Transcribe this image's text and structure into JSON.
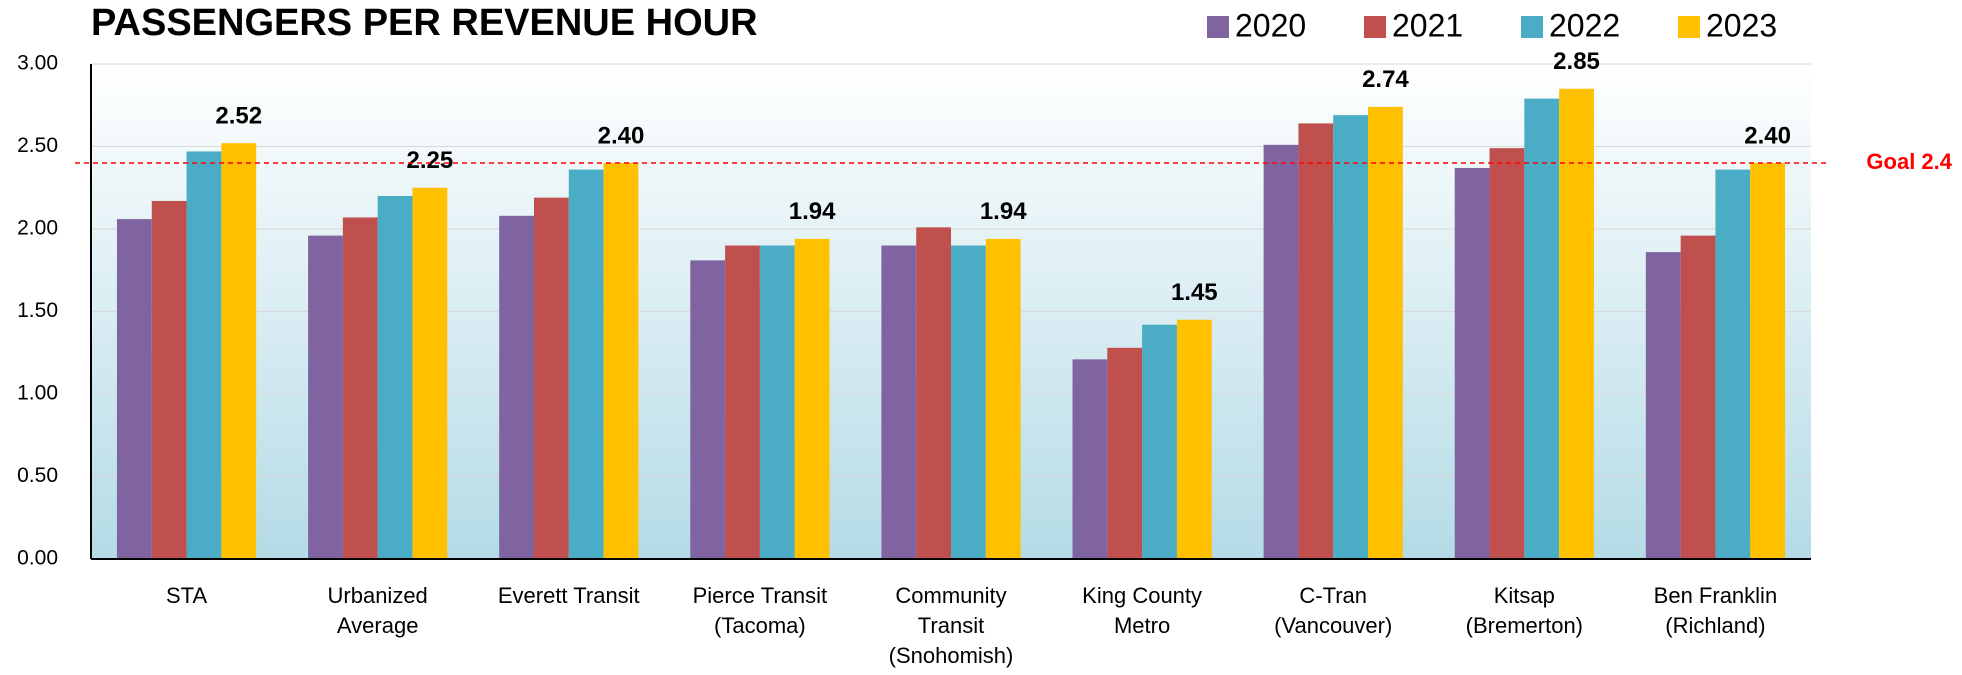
{
  "chart_data": {
    "type": "bar",
    "title": "PASSENGERS PER REVENUE HOUR",
    "categories": [
      [
        "STA"
      ],
      [
        "Urbanized",
        "Average"
      ],
      [
        "Everett Transit"
      ],
      [
        "Pierce Transit",
        "(Tacoma)"
      ],
      [
        "Community",
        "Transit",
        "(Snohomish)"
      ],
      [
        "King County",
        "Metro"
      ],
      [
        "C-Tran",
        "(Vancouver)"
      ],
      [
        "Kitsap",
        "(Bremerton)"
      ],
      [
        "Ben Franklin",
        "(Richland)"
      ]
    ],
    "series": [
      {
        "name": "2020",
        "color": "#8064a2",
        "values": [
          2.06,
          1.96,
          2.08,
          1.81,
          1.9,
          1.21,
          2.51,
          2.37,
          1.86
        ]
      },
      {
        "name": "2021",
        "color": "#c0504d",
        "values": [
          2.17,
          2.07,
          2.19,
          1.9,
          2.01,
          1.28,
          2.64,
          2.49,
          1.96
        ]
      },
      {
        "name": "2022",
        "color": "#4bacc6",
        "values": [
          2.47,
          2.2,
          2.36,
          1.9,
          1.9,
          1.42,
          2.69,
          2.79,
          2.36
        ]
      },
      {
        "name": "2023",
        "color": "#ffc000",
        "values": [
          2.52,
          2.25,
          2.4,
          1.94,
          1.94,
          1.45,
          2.74,
          2.85,
          2.4
        ],
        "value_labels": [
          "2.52",
          "2.25",
          "2.40",
          "1.94",
          "1.94",
          "1.45",
          "2.74",
          "2.85",
          "2.40"
        ]
      }
    ],
    "ylim": [
      0,
      3
    ],
    "yticks": [
      {
        "value": 0,
        "label": "0.00"
      },
      {
        "value": 0.5,
        "label": "0.50"
      },
      {
        "value": 1,
        "label": "1.00"
      },
      {
        "value": 1.5,
        "label": "1.50"
      },
      {
        "value": 2,
        "label": "2.00"
      },
      {
        "value": 2.5,
        "label": "2.50"
      },
      {
        "value": 3,
        "label": "3.00"
      }
    ],
    "grid": true,
    "legend": "top-right",
    "goal": {
      "value": 2.4,
      "label": "Goal 2.4",
      "color": "#ff0000"
    }
  }
}
